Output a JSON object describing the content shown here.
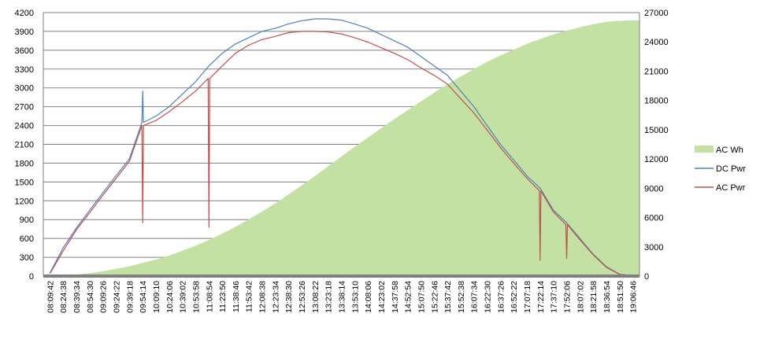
{
  "chart_data": {
    "type": "line",
    "title": "",
    "xlabel": "",
    "ylabel_left": "",
    "ylabel_right": "",
    "grid": true,
    "legend_position": "right",
    "y_left": {
      "min": 0,
      "max": 4200,
      "ticks": [
        "0",
        "300",
        "600",
        "900",
        "1200",
        "1500",
        "1800",
        "2100",
        "2400",
        "2700",
        "3000",
        "3300",
        "3600",
        "3900",
        "4200"
      ]
    },
    "y_right": {
      "min": 0,
      "max": 27000,
      "ticks": [
        "0",
        "3000",
        "6000",
        "9000",
        "12000",
        "15000",
        "18000",
        "21000",
        "24000",
        "27000"
      ]
    },
    "categories": [
      "08:09:42",
      "08:24:38",
      "08:39:34",
      "08:54:30",
      "09:09:26",
      "09:24:22",
      "09:39:18",
      "09:54:14",
      "10:09:10",
      "10:24:06",
      "10:39:02",
      "10:53:58",
      "11:08:54",
      "11:23:50",
      "11:38:46",
      "11:53:42",
      "12:08:38",
      "12:23:34",
      "12:38:30",
      "12:53:26",
      "13:08:22",
      "13:23:18",
      "13:38:14",
      "13:53:10",
      "14:08:06",
      "14:23:02",
      "14:37:58",
      "14:52:54",
      "15:07:50",
      "15:22:46",
      "15:37:42",
      "15:52:38",
      "16:07:34",
      "16:22:30",
      "16:37:26",
      "16:52:22",
      "17:07:18",
      "17:22:14",
      "17:37:10",
      "17:52:06",
      "18:07:02",
      "18:21:58",
      "18:36:54",
      "18:51:50",
      "19:06:46"
    ],
    "series": [
      {
        "name": "AC Wh",
        "axis": "right",
        "type": "area",
        "color": "#c3e1a3",
        "values": [
          0,
          50,
          150,
          300,
          500,
          750,
          1000,
          1350,
          1700,
          2100,
          2600,
          3100,
          3700,
          4350,
          5050,
          5800,
          6600,
          7450,
          8350,
          9300,
          10250,
          11250,
          12250,
          13250,
          14200,
          15150,
          16100,
          17000,
          17900,
          18800,
          19650,
          20450,
          21200,
          21950,
          22600,
          23200,
          23800,
          24300,
          24750,
          25150,
          25500,
          25800,
          26050,
          26150,
          26200
        ]
      },
      {
        "name": "DC Pwr",
        "axis": "left",
        "type": "line",
        "color": "#4f81bd",
        "values": [
          50,
          450,
          770,
          1050,
          1330,
          1600,
          1870,
          2450,
          2550,
          2700,
          2900,
          3100,
          3350,
          3550,
          3700,
          3800,
          3900,
          3950,
          4020,
          4070,
          4100,
          4100,
          4080,
          4020,
          3950,
          3850,
          3750,
          3650,
          3500,
          3350,
          3200,
          2950,
          2700,
          2400,
          2100,
          1850,
          1600,
          1400,
          1050,
          850,
          600,
          350,
          150,
          30,
          5
        ]
      },
      {
        "name": "AC Pwr",
        "axis": "left",
        "type": "line",
        "color": "#c0504d",
        "values": [
          40,
          400,
          740,
          1010,
          1290,
          1560,
          1830,
          2400,
          2480,
          2620,
          2780,
          2950,
          3150,
          3350,
          3550,
          3680,
          3770,
          3820,
          3880,
          3900,
          3900,
          3890,
          3860,
          3800,
          3730,
          3640,
          3550,
          3450,
          3320,
          3200,
          3060,
          2830,
          2600,
          2330,
          2050,
          1800,
          1560,
          1360,
          1020,
          820,
          580,
          340,
          140,
          25,
          5
        ]
      }
    ],
    "annotations": [
      {
        "series": "DC Pwr",
        "category_index": 7,
        "value": 2950,
        "note": "spike"
      },
      {
        "series": "AC Pwr",
        "category_index": 7,
        "value": 850,
        "note": "dip"
      },
      {
        "series": "AC Pwr",
        "category_index": 12,
        "value": 780,
        "note": "dip"
      },
      {
        "series": "AC Pwr",
        "category_index": 37,
        "value": 250,
        "note": "dip"
      },
      {
        "series": "AC Pwr",
        "category_index": 39,
        "value": 280,
        "note": "dip"
      }
    ]
  }
}
